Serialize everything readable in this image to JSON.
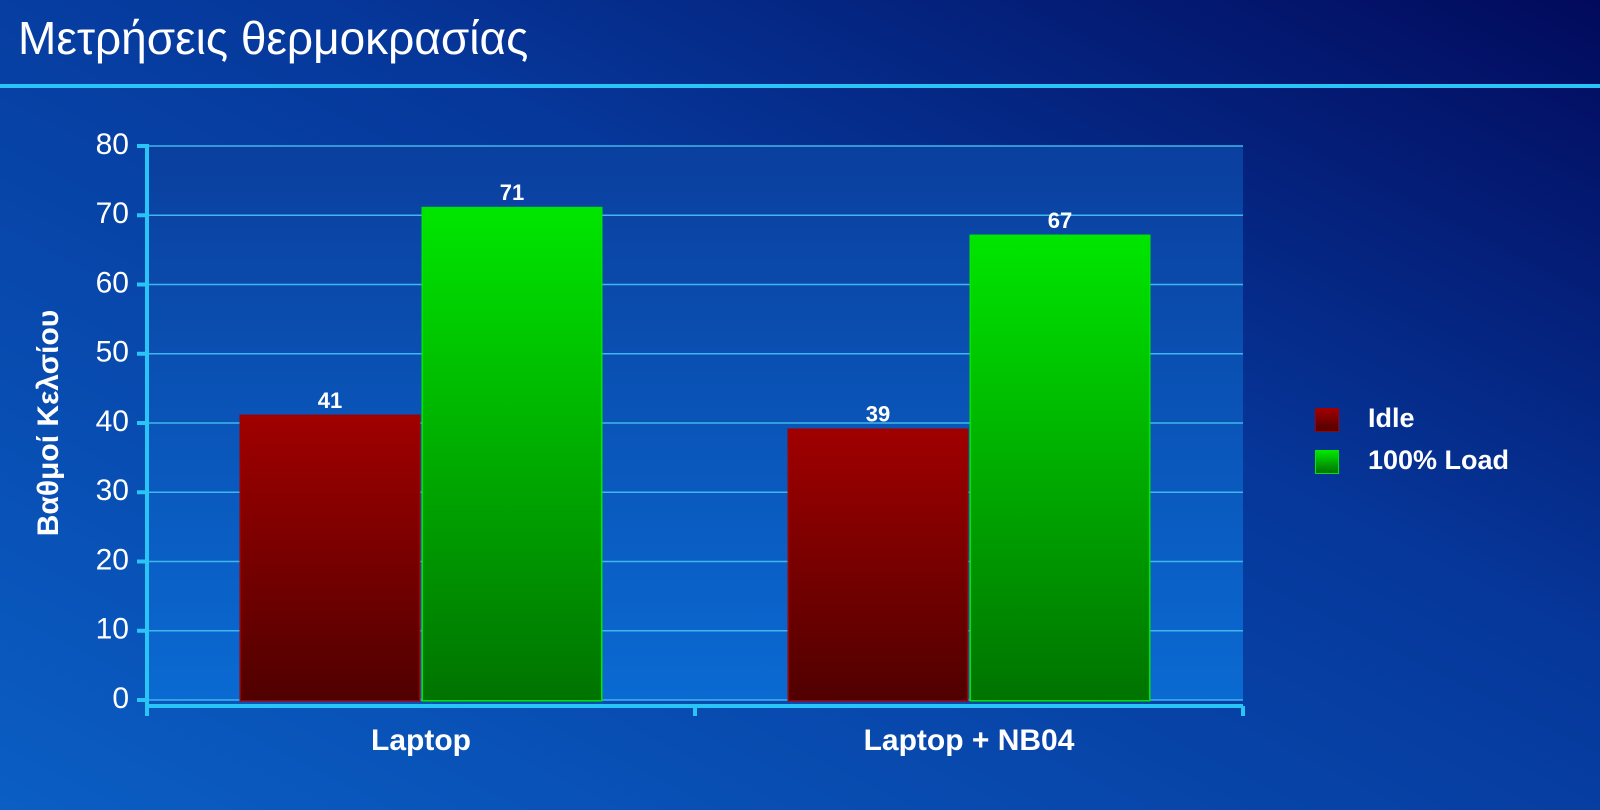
{
  "chart_data": {
    "type": "bar",
    "title": "Μετρήσεις θερμοκρασίας",
    "ylabel": "Βαθμοί Κελσίου",
    "categories": [
      "Laptop",
      "Laptop + NB04"
    ],
    "series": [
      {
        "name": "Idle",
        "color": "#a00000",
        "values": [
          41,
          39
        ]
      },
      {
        "name": "100% Load",
        "color": "#00e600",
        "values": [
          71,
          67
        ]
      }
    ],
    "ylim": [
      0,
      80
    ],
    "yticks": [
      0,
      10,
      20,
      30,
      40,
      50,
      60,
      70,
      80
    ],
    "grid": true,
    "legend": "right"
  }
}
